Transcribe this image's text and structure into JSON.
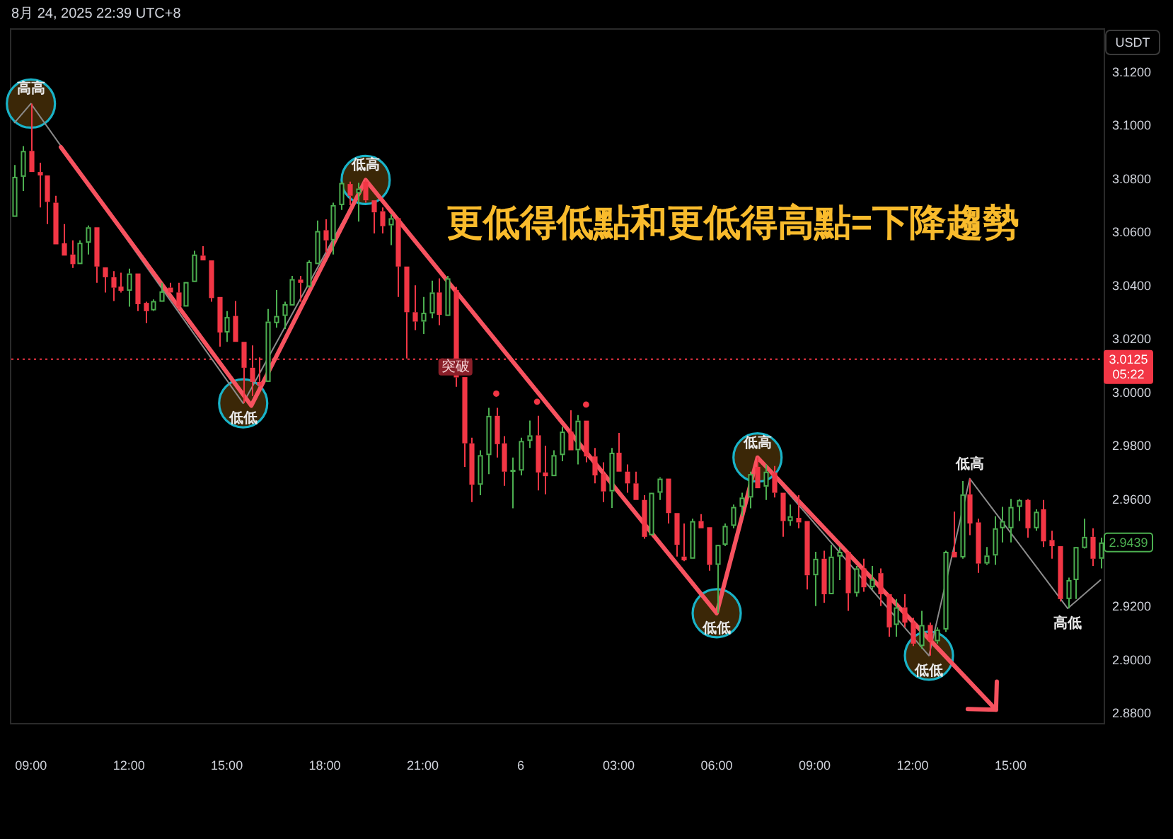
{
  "chart_data": {
    "type": "candlestick",
    "title": "更低得低點和更低得高點=下降趨勢",
    "subtitle": "8月 24, 2025 22:39 UTC+8",
    "ylabel": "USDT",
    "xlim": [
      "2025-08-05T08:24",
      "2025-08-06T17:51"
    ],
    "ylim": [
      2.8763,
      3.1364
    ],
    "xticks": [
      {
        "value": "2025-08-05T09:00",
        "label": "09:00"
      },
      {
        "value": "2025-08-05T12:00",
        "label": "12:00"
      },
      {
        "value": "2025-08-05T15:00",
        "label": "15:00"
      },
      {
        "value": "2025-08-05T18:00",
        "label": "18:00"
      },
      {
        "value": "2025-08-05T21:00",
        "label": "21:00"
      },
      {
        "value": "2025-08-06T00:00",
        "label": "6"
      },
      {
        "value": "2025-08-06T03:00",
        "label": "03:00"
      },
      {
        "value": "2025-08-06T06:00",
        "label": "06:00"
      },
      {
        "value": "2025-08-06T09:00",
        "label": "09:00"
      },
      {
        "value": "2025-08-06T12:00",
        "label": "12:00"
      },
      {
        "value": "2025-08-06T15:00",
        "label": "15:00"
      }
    ],
    "yticks": [
      {
        "value": 2.88,
        "label": "2.8800"
      },
      {
        "value": 2.9,
        "label": "2.9000"
      },
      {
        "value": 2.92,
        "label": "2.9200"
      },
      {
        "value": 2.96,
        "label": "2.9600"
      },
      {
        "value": 2.98,
        "label": "2.9800"
      },
      {
        "value": 3.0,
        "label": "3.0000"
      },
      {
        "value": 3.02,
        "label": "3.0200"
      },
      {
        "value": 3.04,
        "label": "3.0400"
      },
      {
        "value": 3.06,
        "label": "3.0600"
      },
      {
        "value": 3.08,
        "label": "3.0800"
      },
      {
        "value": 3.1,
        "label": "3.1000"
      },
      {
        "value": 3.12,
        "label": "3.1200"
      }
    ],
    "series": [
      {
        "x": [
          "2025-08-05T08:30",
          "2025-08-05T08:45",
          "2025-08-05T09:00",
          "2025-08-05T09:15",
          "2025-08-05T09:30",
          "2025-08-05T09:45",
          "2025-08-05T10:00",
          "2025-08-05T10:15",
          "2025-08-05T10:30",
          "2025-08-05T10:45",
          "2025-08-05T11:00",
          "2025-08-05T11:15",
          "2025-08-05T11:30",
          "2025-08-05T11:45",
          "2025-08-05T12:00",
          "2025-08-05T12:15",
          "2025-08-05T12:30",
          "2025-08-05T12:45",
          "2025-08-05T13:00",
          "2025-08-05T13:15",
          "2025-08-05T13:30",
          "2025-08-05T13:45",
          "2025-08-05T14:00",
          "2025-08-05T14:15",
          "2025-08-05T14:30",
          "2025-08-05T14:45",
          "2025-08-05T15:00",
          "2025-08-05T15:15",
          "2025-08-05T15:30",
          "2025-08-05T15:45",
          "2025-08-05T16:00",
          "2025-08-05T16:15",
          "2025-08-05T16:30",
          "2025-08-05T16:45",
          "2025-08-05T17:00",
          "2025-08-05T17:15",
          "2025-08-05T17:30",
          "2025-08-05T17:45",
          "2025-08-05T18:00",
          "2025-08-05T18:15",
          "2025-08-05T18:30",
          "2025-08-05T18:45",
          "2025-08-05T19:00",
          "2025-08-05T19:15",
          "2025-08-05T19:30",
          "2025-08-05T19:45",
          "2025-08-05T20:00",
          "2025-08-05T20:15",
          "2025-08-05T20:30",
          "2025-08-05T20:45",
          "2025-08-05T21:00",
          "2025-08-05T21:15",
          "2025-08-05T21:30",
          "2025-08-05T21:45",
          "2025-08-05T22:00",
          "2025-08-05T22:15",
          "2025-08-05T22:30",
          "2025-08-05T22:45",
          "2025-08-05T23:00",
          "2025-08-05T23:15",
          "2025-08-05T23:30",
          "2025-08-05T23:45",
          "2025-08-06T00:00",
          "2025-08-06T00:15",
          "2025-08-06T00:30",
          "2025-08-06T00:45",
          "2025-08-06T01:00",
          "2025-08-06T01:15",
          "2025-08-06T01:30",
          "2025-08-06T01:45",
          "2025-08-06T02:00",
          "2025-08-06T02:15",
          "2025-08-06T02:30",
          "2025-08-06T02:45",
          "2025-08-06T03:00",
          "2025-08-06T03:15",
          "2025-08-06T03:30",
          "2025-08-06T03:45",
          "2025-08-06T04:00",
          "2025-08-06T04:15",
          "2025-08-06T04:30",
          "2025-08-06T04:45",
          "2025-08-06T05:00",
          "2025-08-06T05:15",
          "2025-08-06T05:30",
          "2025-08-06T05:45",
          "2025-08-06T06:00",
          "2025-08-06T06:15",
          "2025-08-06T06:30",
          "2025-08-06T06:45",
          "2025-08-06T07:00",
          "2025-08-06T07:15",
          "2025-08-06T07:30",
          "2025-08-06T07:45",
          "2025-08-06T08:00",
          "2025-08-06T08:15",
          "2025-08-06T08:30",
          "2025-08-06T08:45",
          "2025-08-06T09:00",
          "2025-08-06T09:15",
          "2025-08-06T09:30",
          "2025-08-06T09:45",
          "2025-08-06T10:00",
          "2025-08-06T10:15",
          "2025-08-06T10:30",
          "2025-08-06T10:45",
          "2025-08-06T11:00",
          "2025-08-06T11:15",
          "2025-08-06T11:30",
          "2025-08-06T11:45",
          "2025-08-06T12:00",
          "2025-08-06T12:15",
          "2025-08-06T12:30",
          "2025-08-06T12:45",
          "2025-08-06T13:00",
          "2025-08-06T13:15",
          "2025-08-06T13:30",
          "2025-08-06T13:45",
          "2025-08-06T14:00",
          "2025-08-06T14:15",
          "2025-08-06T14:30",
          "2025-08-06T14:45",
          "2025-08-06T15:00",
          "2025-08-06T15:15",
          "2025-08-06T15:30",
          "2025-08-06T15:45",
          "2025-08-06T16:00",
          "2025-08-06T16:15",
          "2025-08-06T16:30",
          "2025-08-06T16:45",
          "2025-08-06T17:00",
          "2025-08-06T17:15",
          "2025-08-06T17:30",
          "2025-08-06T17:45"
        ],
        "ohlc": [
          [
            3.0658,
            3.0852,
            3.0658,
            3.0808
          ],
          [
            3.0808,
            3.0923,
            3.0755,
            3.0905
          ],
          [
            3.0905,
            3.1082,
            3.0826,
            3.0826
          ],
          [
            3.0826,
            3.0861,
            3.0693,
            3.0813
          ],
          [
            3.0813,
            3.0813,
            3.0631,
            3.0714
          ],
          [
            3.0711,
            3.0737,
            3.0555,
            3.0555
          ],
          [
            3.0559,
            3.0631,
            3.0513,
            3.0513
          ],
          [
            3.0517,
            3.057,
            3.0467,
            3.0481
          ],
          [
            3.0481,
            3.057,
            3.0481,
            3.0561
          ],
          [
            3.0561,
            3.0626,
            3.0517,
            3.0619
          ],
          [
            3.0619,
            3.0619,
            3.0411,
            3.0472
          ],
          [
            3.0469,
            3.0469,
            3.0375,
            3.0432
          ],
          [
            3.0432,
            3.0455,
            3.0343,
            3.0393
          ],
          [
            3.0397,
            3.0449,
            3.0375,
            3.0381
          ],
          [
            3.0381,
            3.0464,
            3.0322,
            3.0446
          ],
          [
            3.0446,
            3.0446,
            3.0305,
            3.0331
          ],
          [
            3.0336,
            3.034,
            3.026,
            3.0305
          ],
          [
            3.0308,
            3.0349,
            3.0305,
            3.0343
          ],
          [
            3.034,
            3.0411,
            3.034,
            3.0379
          ],
          [
            3.0393,
            3.0411,
            3.0375,
            3.0375
          ],
          [
            3.0375,
            3.0411,
            3.0313,
            3.0322
          ],
          [
            3.0322,
            3.0414,
            3.0322,
            3.0414
          ],
          [
            3.0414,
            3.0531,
            3.0414,
            3.0517
          ],
          [
            3.0513,
            3.0548,
            3.0495,
            3.0495
          ],
          [
            3.0495,
            3.0495,
            3.034,
            3.0354
          ],
          [
            3.0358,
            3.0358,
            3.0172,
            3.0225
          ],
          [
            3.0225,
            3.0305,
            3.019,
            3.0283
          ],
          [
            3.0287,
            3.0343,
            3.019,
            3.019
          ],
          [
            3.019,
            3.019,
            2.996,
            3.0093
          ],
          [
            3.0093,
            3.0177,
            2.9987,
            3.004
          ],
          [
            3.004,
            3.0132,
            3.0022,
            3.0026
          ],
          [
            3.004,
            3.0313,
            3.004,
            3.0266
          ],
          [
            3.026,
            3.0384,
            3.0243,
            3.0287
          ],
          [
            3.0287,
            3.034,
            3.0238,
            3.0331
          ],
          [
            3.0326,
            3.0437,
            3.0326,
            3.0425
          ],
          [
            3.0423,
            3.0437,
            3.034,
            3.0411
          ],
          [
            3.0396,
            3.0495,
            3.0393,
            3.049
          ],
          [
            3.0481,
            3.0644,
            3.0481,
            3.0605
          ],
          [
            3.0608,
            3.0649,
            3.0525,
            3.057
          ],
          [
            3.057,
            3.0711,
            3.0517,
            3.0702
          ],
          [
            3.0702,
            3.079,
            3.0684,
            3.0785
          ],
          [
            3.0781,
            3.079,
            3.0702,
            3.0737
          ],
          [
            3.0746,
            3.0785,
            3.064,
            3.0764
          ],
          [
            3.079,
            3.0796,
            3.0711,
            3.072
          ],
          [
            3.072,
            3.072,
            3.0596,
            3.0675
          ],
          [
            3.0679,
            3.0693,
            3.0596,
            3.0623
          ],
          [
            3.0626,
            3.0667,
            3.0552,
            3.0653
          ],
          [
            3.0653,
            3.0653,
            3.0358,
            3.0472
          ],
          [
            3.0472,
            3.0472,
            3.0128,
            3.0301
          ],
          [
            3.0301,
            3.0402,
            3.0234,
            3.0266
          ],
          [
            3.0266,
            3.0358,
            3.022,
            3.0299
          ],
          [
            3.0296,
            3.0419,
            3.0278,
            3.0375
          ],
          [
            3.0375,
            3.0428,
            3.0252,
            3.0291
          ],
          [
            3.0287,
            3.0437,
            3.0287,
            3.0428
          ],
          [
            3.0384,
            3.0396,
            3.0022,
            3.0057
          ],
          [
            3.0058,
            3.0058,
            2.9722,
            2.981
          ],
          [
            2.981,
            2.9831,
            2.959,
            2.9655
          ],
          [
            2.9655,
            2.9784,
            2.9616,
            2.9766
          ],
          [
            2.9766,
            2.9943,
            2.9695,
            2.9913
          ],
          [
            2.9913,
            2.9943,
            2.9757,
            2.9807
          ],
          [
            2.981,
            2.9837,
            2.9651,
            2.9704
          ],
          [
            2.9704,
            2.9757,
            2.9567,
            2.9711
          ],
          [
            2.9708,
            2.9831,
            2.969,
            2.9819
          ],
          [
            2.9819,
            2.9895,
            2.9793,
            2.984
          ],
          [
            2.984,
            2.9913,
            2.9634,
            2.9701
          ],
          [
            2.9701,
            2.9801,
            2.9619,
            2.9687
          ],
          [
            2.9687,
            2.9784,
            2.9687,
            2.9766
          ],
          [
            2.9766,
            2.9872,
            2.9743,
            2.9854
          ],
          [
            2.9854,
            2.9934,
            2.9784,
            2.9784
          ],
          [
            2.9784,
            2.9916,
            2.9731,
            2.9895
          ],
          [
            2.9895,
            2.9895,
            2.9739,
            2.9761
          ],
          [
            2.9761,
            2.9793,
            2.966,
            2.969
          ],
          [
            2.9695,
            2.9739,
            2.959,
            2.963
          ],
          [
            2.963,
            2.9793,
            2.9568,
            2.9775
          ],
          [
            2.9775,
            2.9849,
            2.9704,
            2.9704
          ],
          [
            2.9704,
            2.9731,
            2.9625,
            2.966
          ],
          [
            2.966,
            2.9704,
            2.9598,
            2.9598
          ],
          [
            2.9598,
            2.9616,
            2.9453,
            2.946
          ],
          [
            2.9466,
            2.9625,
            2.9466,
            2.9625
          ],
          [
            2.9625,
            2.9683,
            2.9598,
            2.9678
          ],
          [
            2.9678,
            2.9678,
            2.951,
            2.9549
          ],
          [
            2.9549,
            2.9549,
            2.9386,
            2.943
          ],
          [
            2.9386,
            2.951,
            2.9369,
            2.9372
          ],
          [
            2.9378,
            2.9528,
            2.9378,
            2.9519
          ],
          [
            2.9519,
            2.9545,
            2.9492,
            2.9492
          ],
          [
            2.9496,
            2.9496,
            2.9333,
            2.9355
          ],
          [
            2.9355,
            2.943,
            2.9174,
            2.943
          ],
          [
            2.943,
            2.951,
            2.9425,
            2.9501
          ],
          [
            2.9501,
            2.9581,
            2.9492,
            2.9572
          ],
          [
            2.9572,
            2.9625,
            2.9537,
            2.9607
          ],
          [
            2.9607,
            2.9704,
            2.9567,
            2.9695
          ],
          [
            2.9722,
            2.9757,
            2.9642,
            2.9642
          ],
          [
            2.9648,
            2.9731,
            2.9598,
            2.9704
          ],
          [
            2.9701,
            2.9725,
            2.9607,
            2.9625
          ],
          [
            2.9625,
            2.9625,
            2.946,
            2.9519
          ],
          [
            2.9519,
            2.9581,
            2.9501,
            2.9537
          ],
          [
            2.9531,
            2.9616,
            2.9492,
            2.9514
          ],
          [
            2.9519,
            2.9519,
            2.9263,
            2.9316
          ],
          [
            2.9316,
            2.9404,
            2.9201,
            2.9378
          ],
          [
            2.9378,
            2.9408,
            2.9213,
            2.9245
          ],
          [
            2.9245,
            2.943,
            2.9245,
            2.9386
          ],
          [
            2.9386,
            2.9422,
            2.9298,
            2.9404
          ],
          [
            2.9404,
            2.9404,
            2.9183,
            2.9249
          ],
          [
            2.9249,
            2.9351,
            2.9236,
            2.9342
          ],
          [
            2.9342,
            2.9378,
            2.9254,
            2.9271
          ],
          [
            2.9271,
            2.9351,
            2.9263,
            2.9301
          ],
          [
            2.9324,
            2.9342,
            2.9201,
            2.9245
          ],
          [
            2.9245,
            2.9245,
            2.9086,
            2.9121
          ],
          [
            2.913,
            2.9227,
            2.9086,
            2.9196
          ],
          [
            2.9196,
            2.9245,
            2.9121,
            2.9139
          ],
          [
            2.9139,
            2.9157,
            2.9051,
            2.906
          ],
          [
            2.9051,
            2.9183,
            2.9042,
            2.913
          ],
          [
            2.913,
            2.9139,
            2.9015,
            2.9069
          ],
          [
            2.9069,
            2.9121,
            2.906,
            2.9113
          ],
          [
            2.9113,
            2.9408,
            2.9104,
            2.9404
          ],
          [
            2.9404,
            2.9554,
            2.9383,
            2.9383
          ],
          [
            2.9383,
            2.9669,
            2.9378,
            2.9619
          ],
          [
            2.9619,
            2.9678,
            2.9466,
            2.951
          ],
          [
            2.9514,
            2.9528,
            2.9325,
            2.936
          ],
          [
            2.936,
            2.9422,
            2.9355,
            2.939
          ],
          [
            2.939,
            2.9537,
            2.9355,
            2.9492
          ],
          [
            2.9492,
            2.9572,
            2.9439,
            2.9519
          ],
          [
            2.9492,
            2.9602,
            2.9439,
            2.9572
          ],
          [
            2.9572,
            2.9602,
            2.9519,
            2.9598
          ],
          [
            2.9598,
            2.9602,
            2.9457,
            2.9492
          ],
          [
            2.9492,
            2.9563,
            2.9483,
            2.9554
          ],
          [
            2.9563,
            2.9598,
            2.9422,
            2.9443
          ],
          [
            2.9448,
            2.9483,
            2.9378,
            2.9425
          ],
          [
            2.9425,
            2.9425,
            2.9218,
            2.9227
          ],
          [
            2.9227,
            2.9307,
            2.9192,
            2.9298
          ],
          [
            2.9298,
            2.9422,
            2.9227,
            2.9422
          ],
          [
            2.9418,
            2.9528,
            2.9416,
            2.946
          ],
          [
            2.946,
            2.9492,
            2.9351,
            2.9378
          ],
          [
            2.9378,
            2.9457,
            2.9342,
            2.9439
          ]
        ],
        "colors": [
          "#4caf50",
          "#4caf50",
          "#f23645",
          "#f23645",
          "#f23645",
          "#f23645",
          "#f23645",
          "#f23645",
          "#4caf50",
          "#4caf50",
          "#f23645",
          "#f23645",
          "#f23645",
          "#f23645",
          "#4caf50",
          "#f23645",
          "#f23645",
          "#4caf50",
          "#4caf50",
          "#f23645",
          "#f23645",
          "#4caf50",
          "#4caf50",
          "#f23645",
          "#f23645",
          "#f23645",
          "#4caf50",
          "#f23645",
          "#f23645",
          "#f23645",
          "#f23645",
          "#4caf50",
          "#4caf50",
          "#4caf50",
          "#4caf50",
          "#f23645",
          "#4caf50",
          "#4caf50",
          "#f23645",
          "#4caf50",
          "#4caf50",
          "#f23645",
          "#4caf50",
          "#f23645",
          "#f23645",
          "#f23645",
          "#4caf50",
          "#f23645",
          "#f23645",
          "#f23645",
          "#4caf50",
          "#4caf50",
          "#f23645",
          "#4caf50",
          "#f23645",
          "#f23645",
          "#f23645",
          "#4caf50",
          "#4caf50",
          "#f23645",
          "#f23645",
          "#4caf50",
          "#4caf50",
          "#4caf50",
          "#f23645",
          "#f23645",
          "#4caf50",
          "#4caf50",
          "#f23645",
          "#4caf50",
          "#f23645",
          "#f23645",
          "#f23645",
          "#4caf50",
          "#f23645",
          "#f23645",
          "#f23645",
          "#f23645",
          "#4caf50",
          "#4caf50",
          "#f23645",
          "#f23645",
          "#f23645",
          "#4caf50",
          "#f23645",
          "#f23645",
          "#4caf50",
          "#4caf50",
          "#4caf50",
          "#4caf50",
          "#4caf50",
          "#f23645",
          "#4caf50",
          "#f23645",
          "#f23645",
          "#4caf50",
          "#f23645",
          "#f23645",
          "#4caf50",
          "#f23645",
          "#4caf50",
          "#4caf50",
          "#f23645",
          "#4caf50",
          "#f23645",
          "#4caf50",
          "#f23645",
          "#f23645",
          "#4caf50",
          "#f23645",
          "#f23645",
          "#4caf50",
          "#f23645",
          "#4caf50",
          "#4caf50",
          "#f23645",
          "#4caf50",
          "#f23645",
          "#f23645",
          "#4caf50",
          "#4caf50",
          "#4caf50",
          "#4caf50",
          "#4caf50",
          "#f23645",
          "#4caf50",
          "#f23645",
          "#f23645",
          "#f23645",
          "#4caf50",
          "#4caf50",
          "#4caf50",
          "#f23645",
          "#4caf50"
        ],
        "value_labels": [
          null,
          null,
          null,
          null,
          null,
          null,
          null,
          null,
          null,
          null,
          null,
          null,
          null,
          null,
          null,
          null,
          null,
          null,
          null,
          null,
          null,
          null,
          null,
          null,
          null,
          null,
          null,
          null,
          null,
          null,
          null,
          null,
          null,
          null,
          null,
          null,
          null,
          null,
          null,
          null,
          null,
          null,
          null,
          null,
          null,
          null,
          null,
          null,
          null,
          null,
          null,
          null,
          null,
          null,
          null,
          null,
          null,
          null,
          null,
          null,
          null,
          null,
          null,
          null,
          null,
          null,
          null,
          null,
          null,
          null,
          null,
          null,
          null,
          null,
          null,
          null,
          null,
          null,
          null,
          null,
          null,
          null,
          null,
          null,
          null,
          null,
          null,
          null,
          null,
          null,
          null,
          null,
          null,
          null,
          null,
          null,
          null,
          null,
          null,
          null,
          null,
          null,
          null,
          null,
          null,
          null,
          null,
          null,
          null,
          null,
          null,
          null,
          null,
          null,
          null,
          null,
          null,
          null,
          null,
          null,
          null,
          null,
          null,
          null,
          null,
          null,
          null,
          null,
          null,
          null,
          null,
          null,
          null,
          "2.9439"
        ]
      },
      {
        "type": "line",
        "color": "#8c8c8c",
        "x": [
          "2025-08-05T08:30",
          "2025-08-05T09:00",
          "2025-08-05T15:30",
          "2025-08-05T19:15",
          "2025-08-06T06:00",
          "2025-08-06T07:15",
          "2025-08-06T12:30",
          "2025-08-06T13:45",
          "2025-08-06T16:45",
          "2025-08-06T17:45"
        ],
        "values": [
          3.1011,
          3.1082,
          2.996,
          3.0796,
          2.9174,
          2.9757,
          2.9015,
          2.9678,
          2.9192,
          2.9298
        ]
      },
      {
        "type": "line",
        "color": "#f7525f",
        "x": [
          "2025-08-05T09:55",
          "2025-08-05T15:45",
          "2025-08-05T19:15",
          "2025-08-06T06:00",
          "2025-08-06T07:15",
          "2025-08-06T12:30"
        ],
        "values": [
          3.0919,
          2.9951,
          3.0796,
          2.9174,
          2.9757,
          2.9078
        ]
      },
      {
        "type": "scatter",
        "color": "#f23645",
        "marker": "circle",
        "x": [
          "2025-08-05T23:15",
          "2025-08-06T00:30",
          "2025-08-06T02:00"
        ],
        "values": [
          2.9996,
          2.9966,
          2.9955
        ]
      }
    ],
    "ref_lines": [
      {
        "axis": "y",
        "value": 3.0125,
        "label": "3.0125\n05:22",
        "color": "#f23645",
        "line_style": "dotted"
      }
    ],
    "annotations": [
      {
        "text": "高高",
        "x": "2025-08-05T09:00",
        "y": 3.1082
      },
      {
        "text": "低低",
        "x": "2025-08-05T15:30",
        "y": 2.996
      },
      {
        "text": "低高",
        "x": "2025-08-05T19:15",
        "y": 3.0796
      },
      {
        "text": "突破",
        "x": "2025-08-05T22:00",
        "y": 3.0096
      },
      {
        "text": "低低",
        "x": "2025-08-06T06:00",
        "y": 2.9174
      },
      {
        "text": "低高",
        "x": "2025-08-06T07:15",
        "y": 2.9757
      },
      {
        "text": "低低",
        "x": "2025-08-06T12:30",
        "y": 2.9015
      },
      {
        "text": "低高",
        "x": "2025-08-06T13:45",
        "y": 2.9678
      },
      {
        "text": "高低",
        "x": "2025-08-06T16:45",
        "y": 2.9192
      }
    ]
  }
}
